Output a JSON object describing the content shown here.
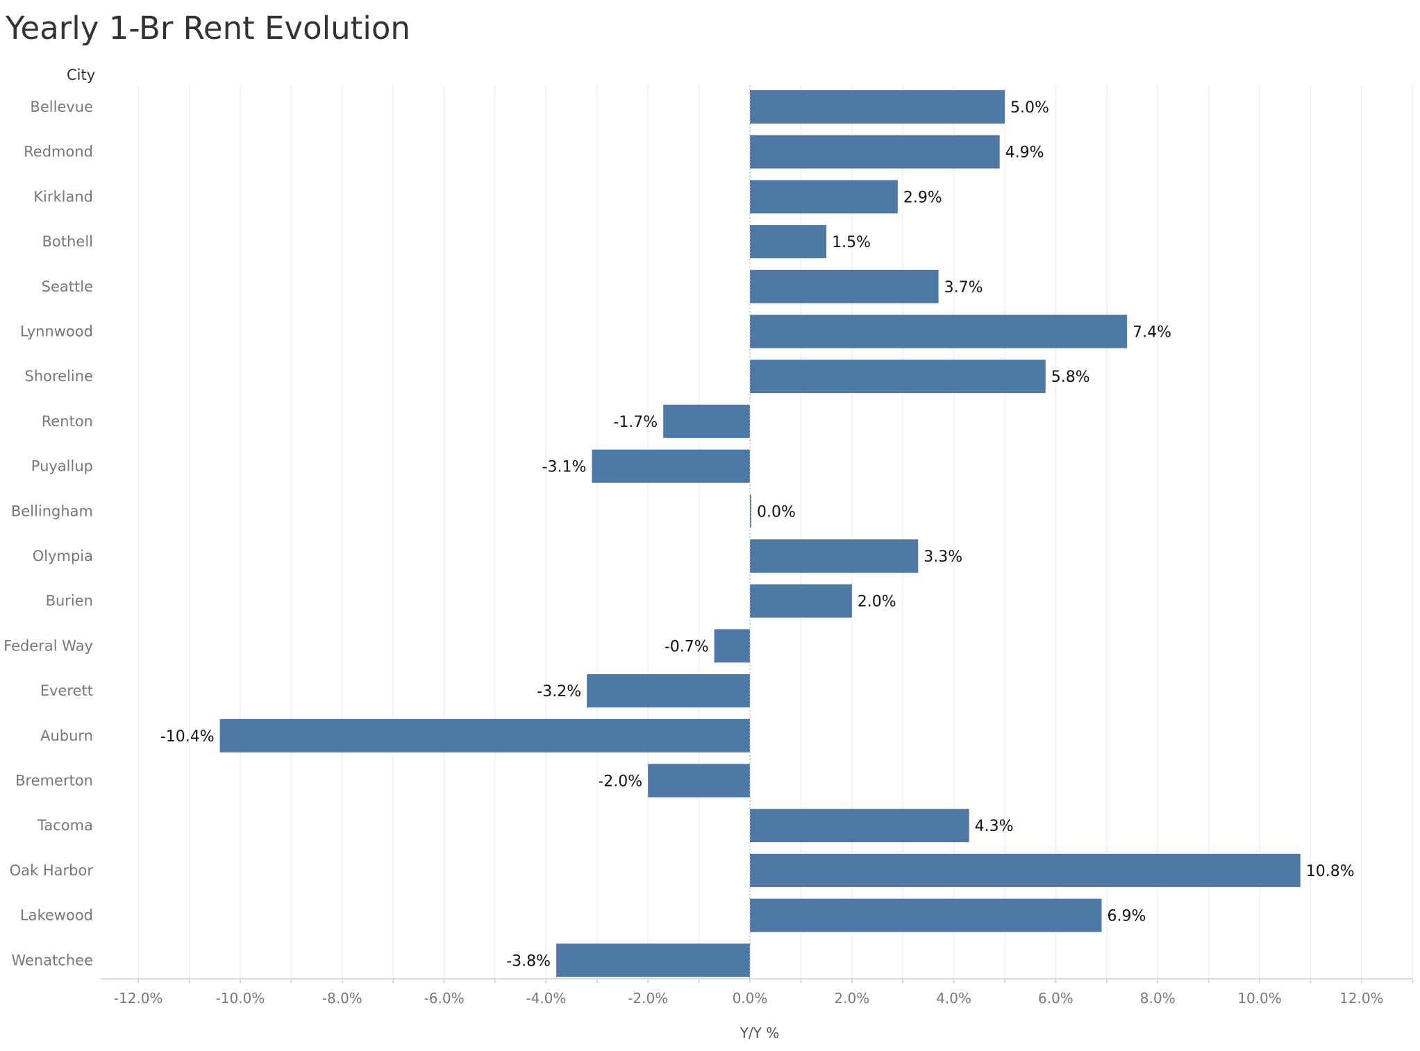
{
  "chart_data": {
    "type": "bar",
    "orientation": "horizontal",
    "title": "Yearly 1-Br Rent Evolution",
    "row_header": "City",
    "xlabel": "Y/Y %",
    "xlim": [
      -13,
      13
    ],
    "xticks": [
      -12,
      -10,
      -8,
      -6,
      -4,
      -2,
      0,
      2,
      4,
      6,
      8,
      10,
      12
    ],
    "xtick_labels": [
      "-12.0%",
      "-10.0%",
      "-8.0%",
      "-6.0%",
      "-4.0%",
      "-2.0%",
      "0.0%",
      "2.0%",
      "4.0%",
      "6.0%",
      "8.0%",
      "10.0%",
      "12.0%"
    ],
    "categories": [
      "Bellevue",
      "Redmond",
      "Kirkland",
      "Bothell",
      "Seattle",
      "Lynnwood",
      "Shoreline",
      "Renton",
      "Puyallup",
      "Bellingham",
      "Olympia",
      "Burien",
      "Federal Way",
      "Everett",
      "Auburn",
      "Bremerton",
      "Tacoma",
      "Oak Harbor",
      "Lakewood",
      "Wenatchee"
    ],
    "values": [
      5.0,
      4.9,
      2.9,
      1.5,
      3.7,
      7.4,
      5.8,
      -1.7,
      -3.1,
      0.0,
      3.3,
      2.0,
      -0.7,
      -3.2,
      -10.4,
      -2.0,
      4.3,
      10.8,
      6.9,
      -3.8
    ],
    "data_labels": [
      "5.0%",
      "4.9%",
      "2.9%",
      "1.5%",
      "3.7%",
      "7.4%",
      "5.8%",
      "-1.7%",
      "-3.1%",
      "0.0%",
      "3.3%",
      "2.0%",
      "-0.7%",
      "-3.2%",
      "-10.4%",
      "-2.0%",
      "4.3%",
      "10.8%",
      "6.9%",
      "-3.8%"
    ],
    "grid": true,
    "bar_color": "#4e79a7",
    "grid_color": "#efefef",
    "zero_line_color": "#bbbbbb"
  }
}
